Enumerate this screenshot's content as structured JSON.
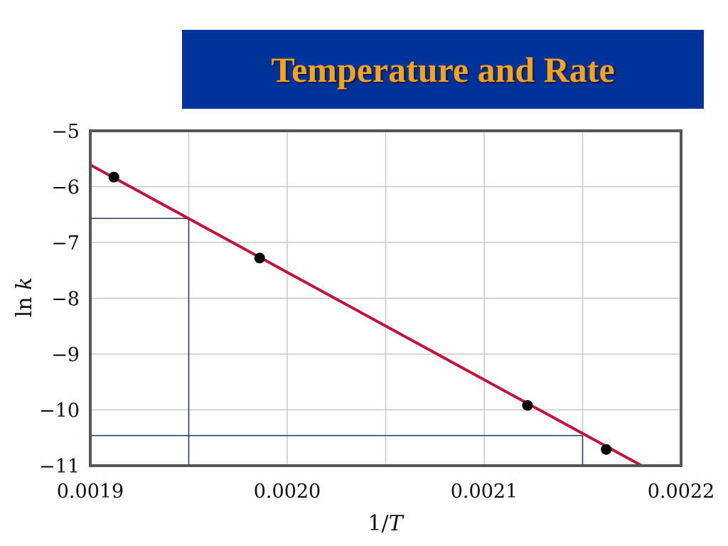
{
  "slide": {
    "title": "Temperature and Rate",
    "title_color": "#F7A21E",
    "banner_color": "#003399"
  },
  "chart_data": {
    "type": "scatter",
    "title": "",
    "xlabel_prefix": "1/",
    "xlabel_var": "T",
    "ylabel_prefix": "ln ",
    "ylabel_var": "k",
    "xlim": [
      0.0019,
      0.0022
    ],
    "ylim": [
      -11,
      -5
    ],
    "x_ticks": [
      0.0019,
      0.002,
      0.0021,
      0.0022
    ],
    "x_tick_labels": [
      "0.0019",
      "0.0020",
      "0.0021",
      "0.0022"
    ],
    "y_ticks": [
      -5,
      -6,
      -7,
      -8,
      -9,
      -10,
      -11
    ],
    "y_tick_labels": [
      "−5",
      "−6",
      "−7",
      "−8",
      "−9",
      "−10",
      "−11"
    ],
    "grid": true,
    "series": [
      {
        "points": [
          {
            "x": 0.001912,
            "y": -5.83
          },
          {
            "x": 0.001986,
            "y": -7.28
          },
          {
            "x": 0.002122,
            "y": -9.92
          },
          {
            "x": 0.002162,
            "y": -10.71
          }
        ],
        "color": "#000000"
      }
    ],
    "fit_line": {
      "x": [
        0.0019,
        0.00218
      ],
      "y": [
        -5.61,
        -11.0
      ],
      "color": "#C0143C"
    },
    "reference_lines": [
      {
        "x": 0.00195,
        "y": -6.57
      },
      {
        "x": 0.00215,
        "y": -10.46
      }
    ],
    "reference_color": "#1F3A66",
    "grid_color": "#C8C8C8",
    "frame_color": "#555555"
  }
}
